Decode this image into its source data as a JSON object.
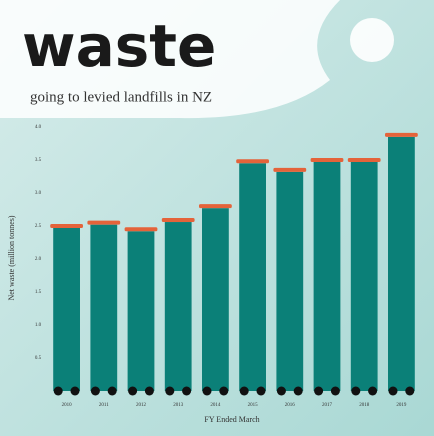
{
  "chart_data": {
    "type": "bar",
    "title": "waste",
    "subtitle": "going to levied landfills in NZ",
    "x_label": "FY Ended March",
    "y_label": "Net waste (million tonnes)",
    "categories": [
      "2010",
      "2011",
      "2012",
      "2013",
      "2014",
      "2015",
      "2016",
      "2017",
      "2018",
      "2019"
    ],
    "values": [
      2.47,
      2.52,
      2.42,
      2.56,
      2.77,
      3.45,
      3.32,
      3.47,
      3.47,
      3.85
    ],
    "color": "#0b8078",
    "ylim": [
      0,
      4.0
    ],
    "yticks": [
      {
        "value": 0.5,
        "label": "0.5"
      },
      {
        "value": 1.0,
        "label": "1.0"
      },
      {
        "value": 1.5,
        "label": "1.5"
      },
      {
        "value": 2.0,
        "label": "2.0"
      },
      {
        "value": 2.5,
        "label": "2.5"
      },
      {
        "value": 3.0,
        "label": "3.0"
      },
      {
        "value": 3.5,
        "label": "3.5"
      },
      {
        "value": 4.0,
        "label": "4.0"
      }
    ],
    "grid": false
  }
}
